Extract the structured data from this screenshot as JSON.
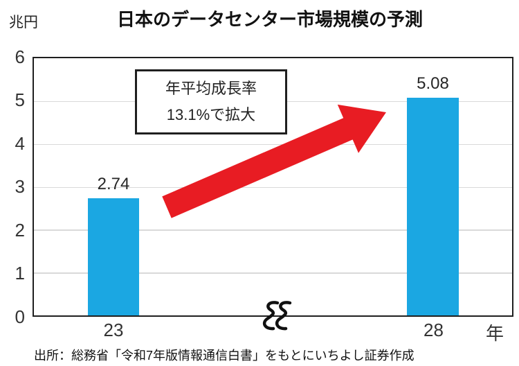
{
  "title": "日本のデータセンター市場規模の予測",
  "unit_label": "兆円",
  "annotation": {
    "line1": "年平均成長率",
    "line2": "13.1%で拡大"
  },
  "source": "出所：総務省「令和7年版情報通信白書」をもとにいちよし証券作成",
  "colors": {
    "bar": "#1BA7E2",
    "arrow": "#E81C23",
    "border": "#1F1F1F",
    "gridline": "#D9D9D9"
  },
  "chart_data": {
    "type": "bar",
    "categories": [
      "23",
      "28"
    ],
    "values": [
      2.74,
      5.08
    ],
    "value_labels": [
      "2.74",
      "5.08"
    ],
    "title": "日本のデータセンター市場規模の予測",
    "xlabel": "年",
    "ylabel": "兆円",
    "ylim": [
      0,
      6
    ],
    "yticks": [
      6,
      5,
      4,
      3,
      2,
      1,
      0
    ],
    "grid": true,
    "legend": false,
    "axis_break_between_categories": true,
    "annotation": "年平均成長率13.1%で拡大",
    "bar_color": "#1BA7E2"
  }
}
